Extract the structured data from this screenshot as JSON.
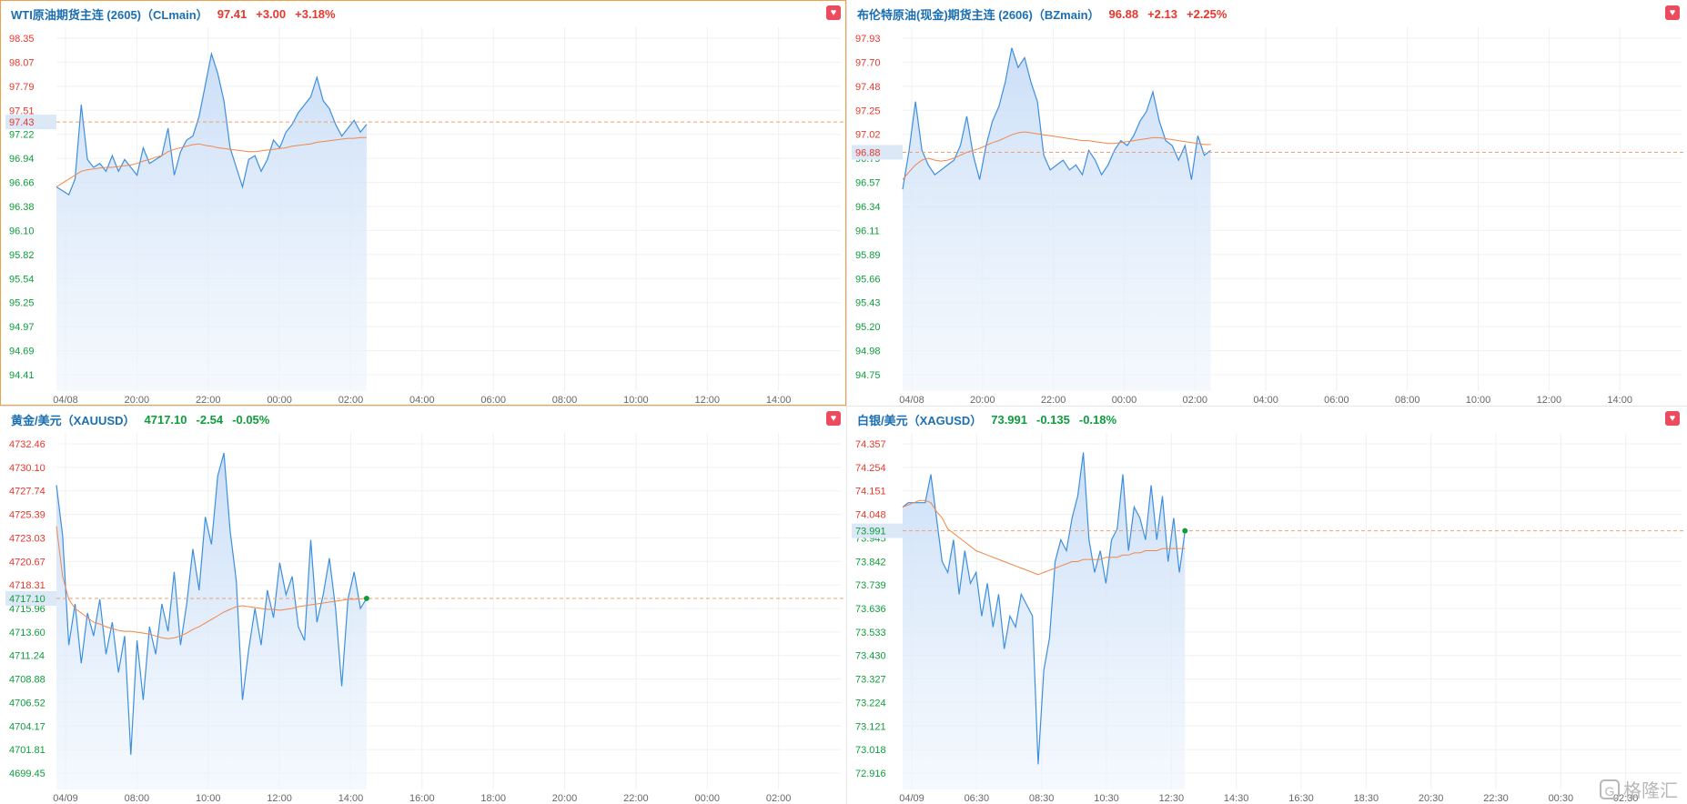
{
  "panels": [
    {
      "name": "WTI原油期货主连 (2605)（CLmain）",
      "price": "97.41",
      "change": "+3.00",
      "pct": "+3.18%",
      "direction": "up",
      "current_tag": "97.43"
    },
    {
      "name": "布伦特原油(现金)期货主连 (2606)（BZmain）",
      "price": "96.88",
      "change": "+2.13",
      "pct": "+2.25%",
      "direction": "up",
      "current_tag": "96.88"
    },
    {
      "name": "黄金/美元（XAUUSD）",
      "price": "4717.10",
      "change": "-2.54",
      "pct": "-0.05%",
      "direction": "down",
      "current_tag": "4717.10"
    },
    {
      "name": "白银/美元（XAGUSD）",
      "price": "73.991",
      "change": "-0.135",
      "pct": "-0.18%",
      "direction": "down",
      "current_tag": "73.991"
    }
  ],
  "favorite_icon": "heart-icon",
  "watermark": {
    "icon": "G",
    "text": "格隆汇"
  },
  "colors": {
    "up": "#e8362b",
    "down": "#0d9e3b",
    "line": "#3b8fe0",
    "avg": "#f0874a",
    "fill": "#dbe9fb"
  },
  "chart_data": [
    {
      "type": "area",
      "title": "WTI原油期货主连 (2605)（CLmain）",
      "ylim": [
        94.2,
        98.5
      ],
      "yticks": [
        "98.35",
        "98.07",
        "97.79",
        "97.51",
        "97.22",
        "96.94",
        "96.66",
        "96.38",
        "96.10",
        "95.82",
        "95.54",
        "95.25",
        "94.97",
        "94.69",
        "94.41"
      ],
      "xticks": [
        "04/08",
        "20:00",
        "22:00",
        "00:00",
        "02:00",
        "04:00",
        "06:00",
        "08:00",
        "10:00",
        "12:00",
        "14:00"
      ],
      "prev_close": 97.43,
      "series": [
        {
          "values": [
            96.6,
            96.55,
            96.5,
            96.7,
            97.65,
            96.95,
            96.85,
            96.9,
            96.8,
            97.0,
            96.8,
            96.95,
            96.85,
            96.75,
            97.1,
            96.9,
            96.95,
            97.0,
            97.35,
            96.75,
            97.05,
            97.2,
            97.25,
            97.5,
            97.9,
            98.3,
            98.05,
            97.7,
            97.1,
            96.85,
            96.6,
            96.95,
            97.0,
            96.8,
            96.95,
            97.2,
            97.1,
            97.3,
            97.4,
            97.55,
            97.65,
            97.75,
            98.0,
            97.7,
            97.6,
            97.4,
            97.25,
            97.35,
            97.45,
            97.3,
            97.4
          ]
        },
        {
          "values": [
            96.6,
            96.65,
            96.7,
            96.75,
            96.8,
            96.82,
            96.83,
            96.84,
            96.85,
            96.85,
            96.86,
            96.87,
            96.88,
            96.9,
            96.93,
            96.95,
            96.98,
            97.0,
            97.05,
            97.08,
            97.1,
            97.12,
            97.14,
            97.15,
            97.13,
            97.12,
            97.1,
            97.09,
            97.08,
            97.07,
            97.06,
            97.05,
            97.05,
            97.06,
            97.07,
            97.08,
            97.09,
            97.1,
            97.12,
            97.13,
            97.14,
            97.15,
            97.17,
            97.18,
            97.19,
            97.2,
            97.21,
            97.22,
            97.22,
            97.23,
            97.23
          ]
        }
      ]
    },
    {
      "type": "area",
      "title": "布伦特原油(现金)期货主连 (2606)（BZmain）",
      "ylim": [
        94.6,
        98.05
      ],
      "yticks": [
        "97.93",
        "97.70",
        "97.48",
        "97.25",
        "97.02",
        "96.79",
        "96.57",
        "96.34",
        "96.11",
        "95.89",
        "95.66",
        "95.43",
        "95.20",
        "94.98",
        "94.75"
      ],
      "xticks": [
        "04/08",
        "20:00",
        "22:00",
        "00:00",
        "02:00",
        "04:00",
        "06:00",
        "08:00",
        "10:00",
        "12:00",
        "14:00"
      ],
      "prev_close": 96.88,
      "series": [
        {
          "values": [
            96.5,
            96.9,
            97.4,
            96.9,
            96.75,
            96.65,
            96.7,
            96.75,
            96.8,
            96.95,
            97.25,
            96.85,
            96.6,
            96.95,
            97.2,
            97.35,
            97.6,
            97.95,
            97.75,
            97.85,
            97.6,
            97.4,
            96.85,
            96.7,
            96.75,
            96.8,
            96.7,
            96.75,
            96.65,
            96.9,
            96.8,
            96.65,
            96.75,
            96.9,
            97.0,
            96.95,
            97.05,
            97.2,
            97.3,
            97.5,
            97.2,
            97.0,
            96.95,
            96.8,
            96.95,
            96.6,
            97.05,
            96.85,
            96.9
          ]
        },
        {
          "values": [
            96.6,
            96.68,
            96.75,
            96.8,
            96.82,
            96.8,
            96.79,
            96.8,
            96.82,
            96.85,
            96.88,
            96.9,
            96.92,
            96.95,
            96.98,
            97.0,
            97.03,
            97.06,
            97.08,
            97.09,
            97.08,
            97.07,
            97.06,
            97.05,
            97.04,
            97.03,
            97.02,
            97.01,
            97.0,
            97.0,
            96.99,
            96.98,
            96.97,
            96.97,
            96.98,
            96.99,
            97.0,
            97.01,
            97.02,
            97.03,
            97.03,
            97.02,
            97.01,
            97.0,
            96.99,
            96.98,
            96.97,
            96.96,
            96.96
          ]
        }
      ]
    },
    {
      "type": "area",
      "title": "黄金/美元（XAUUSD）",
      "ylim": [
        4698.0,
        4734.0
      ],
      "yticks": [
        "4732.46",
        "4730.10",
        "4727.74",
        "4725.39",
        "4723.03",
        "4720.67",
        "4718.31",
        "4715.96",
        "4713.60",
        "4711.24",
        "4708.88",
        "4706.52",
        "4704.17",
        "4701.81",
        "4699.45"
      ],
      "xticks": [
        "04/09",
        "08:00",
        "10:00",
        "12:00",
        "14:00",
        "16:00",
        "18:00",
        "20:00",
        "22:00",
        "00:00",
        "02:00"
      ],
      "prev_close": 4717.1,
      "series": [
        {
          "values": [
            4729.5,
            4724.0,
            4712.0,
            4716.5,
            4710.0,
            4715.5,
            4713.0,
            4717.0,
            4711.0,
            4714.5,
            4709.0,
            4713.0,
            4700.0,
            4712.5,
            4706.0,
            4714.0,
            4711.0,
            4716.5,
            4713.5,
            4720.0,
            4712.0,
            4716.5,
            4722.5,
            4718.0,
            4726.0,
            4723.0,
            4730.5,
            4733.0,
            4724.5,
            4719.0,
            4706.0,
            4711.5,
            4716.0,
            4712.0,
            4718.0,
            4715.0,
            4721.0,
            4717.5,
            4719.5,
            4714.0,
            4712.5,
            4723.5,
            4714.5,
            4717.5,
            4721.5,
            4716.0,
            4707.5,
            4717.0,
            4720.0,
            4716.0,
            4717.1
          ]
        },
        {
          "values": [
            4725.0,
            4719.5,
            4717.0,
            4716.0,
            4715.5,
            4715.0,
            4714.5,
            4714.3,
            4714.0,
            4713.8,
            4713.6,
            4713.5,
            4713.5,
            4713.4,
            4713.3,
            4713.2,
            4713.0,
            4712.8,
            4712.7,
            4712.8,
            4713.0,
            4713.3,
            4713.7,
            4714.0,
            4714.4,
            4714.8,
            4715.2,
            4715.6,
            4715.9,
            4716.2,
            4716.3,
            4716.2,
            4716.1,
            4716.0,
            4715.9,
            4715.9,
            4715.8,
            4715.9,
            4716.0,
            4716.2,
            4716.3,
            4716.4,
            4716.5,
            4716.6,
            4716.7,
            4716.8,
            4716.9,
            4717.0,
            4717.0,
            4717.05,
            4717.1
          ]
        }
      ]
    },
    {
      "type": "area",
      "title": "白银/美元（XAGUSD）",
      "ylim": [
        72.88,
        74.39
      ],
      "yticks": [
        "74.357",
        "74.254",
        "74.151",
        "74.048",
        "73.945",
        "73.842",
        "73.739",
        "73.636",
        "73.533",
        "73.430",
        "73.327",
        "73.224",
        "73.121",
        "73.018",
        "72.916"
      ],
      "xticks": [
        "04/09",
        "06:30",
        "08:30",
        "10:30",
        "12:30",
        "14:30",
        "16:30",
        "18:30",
        "20:30",
        "22:30",
        "00:30",
        "02:30"
      ],
      "prev_close": 73.991,
      "series": [
        {
          "values": [
            74.1,
            74.12,
            74.12,
            74.12,
            74.12,
            74.25,
            74.05,
            73.85,
            73.8,
            73.95,
            73.7,
            73.9,
            73.75,
            73.8,
            73.6,
            73.75,
            73.55,
            73.7,
            73.45,
            73.6,
            73.55,
            73.7,
            73.65,
            73.6,
            72.92,
            73.35,
            73.5,
            73.85,
            73.95,
            73.9,
            74.05,
            74.15,
            74.35,
            73.95,
            73.8,
            73.9,
            73.75,
            73.95,
            74.0,
            74.25,
            73.9,
            74.1,
            74.05,
            73.95,
            74.2,
            73.95,
            74.15,
            73.85,
            74.05,
            73.8,
            73.991
          ]
        },
        {
          "values": [
            74.1,
            74.11,
            74.12,
            74.13,
            74.13,
            74.12,
            74.08,
            74.05,
            74.0,
            73.98,
            73.96,
            73.94,
            73.92,
            73.9,
            73.89,
            73.88,
            73.87,
            73.86,
            73.85,
            73.84,
            73.83,
            73.82,
            73.81,
            73.8,
            73.79,
            73.8,
            73.81,
            73.82,
            73.83,
            73.84,
            73.85,
            73.85,
            73.86,
            73.86,
            73.86,
            73.86,
            73.87,
            73.87,
            73.87,
            73.88,
            73.88,
            73.89,
            73.89,
            73.9,
            73.9,
            73.9,
            73.91,
            73.91,
            73.91,
            73.91,
            73.91
          ]
        }
      ]
    }
  ]
}
